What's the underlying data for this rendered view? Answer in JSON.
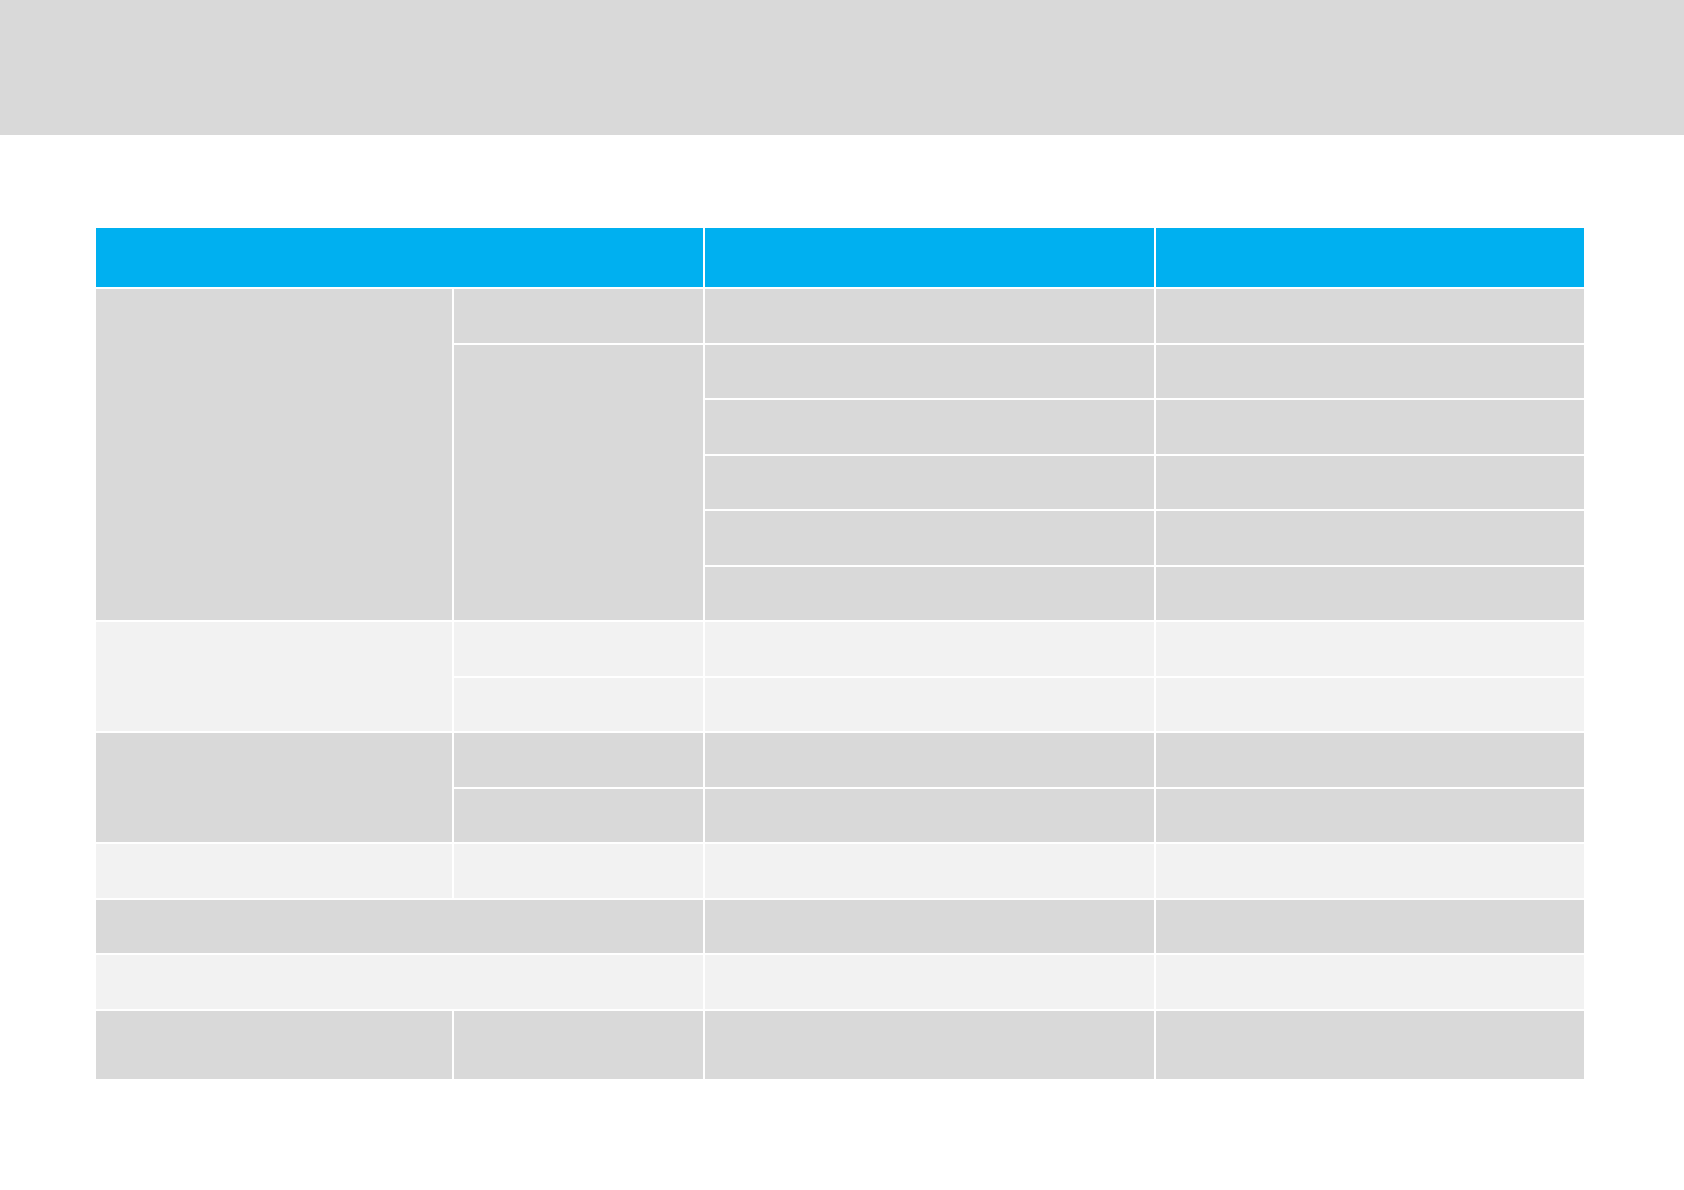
{
  "colors": {
    "header": "#00b0f0",
    "band_dark": "#d9d9d9",
    "band_light": "#f2f2f2",
    "top_band": "#d9d9d9",
    "grid_lines": "#ffffff"
  },
  "table": {
    "header": [
      "",
      "",
      ""
    ],
    "rows": []
  }
}
